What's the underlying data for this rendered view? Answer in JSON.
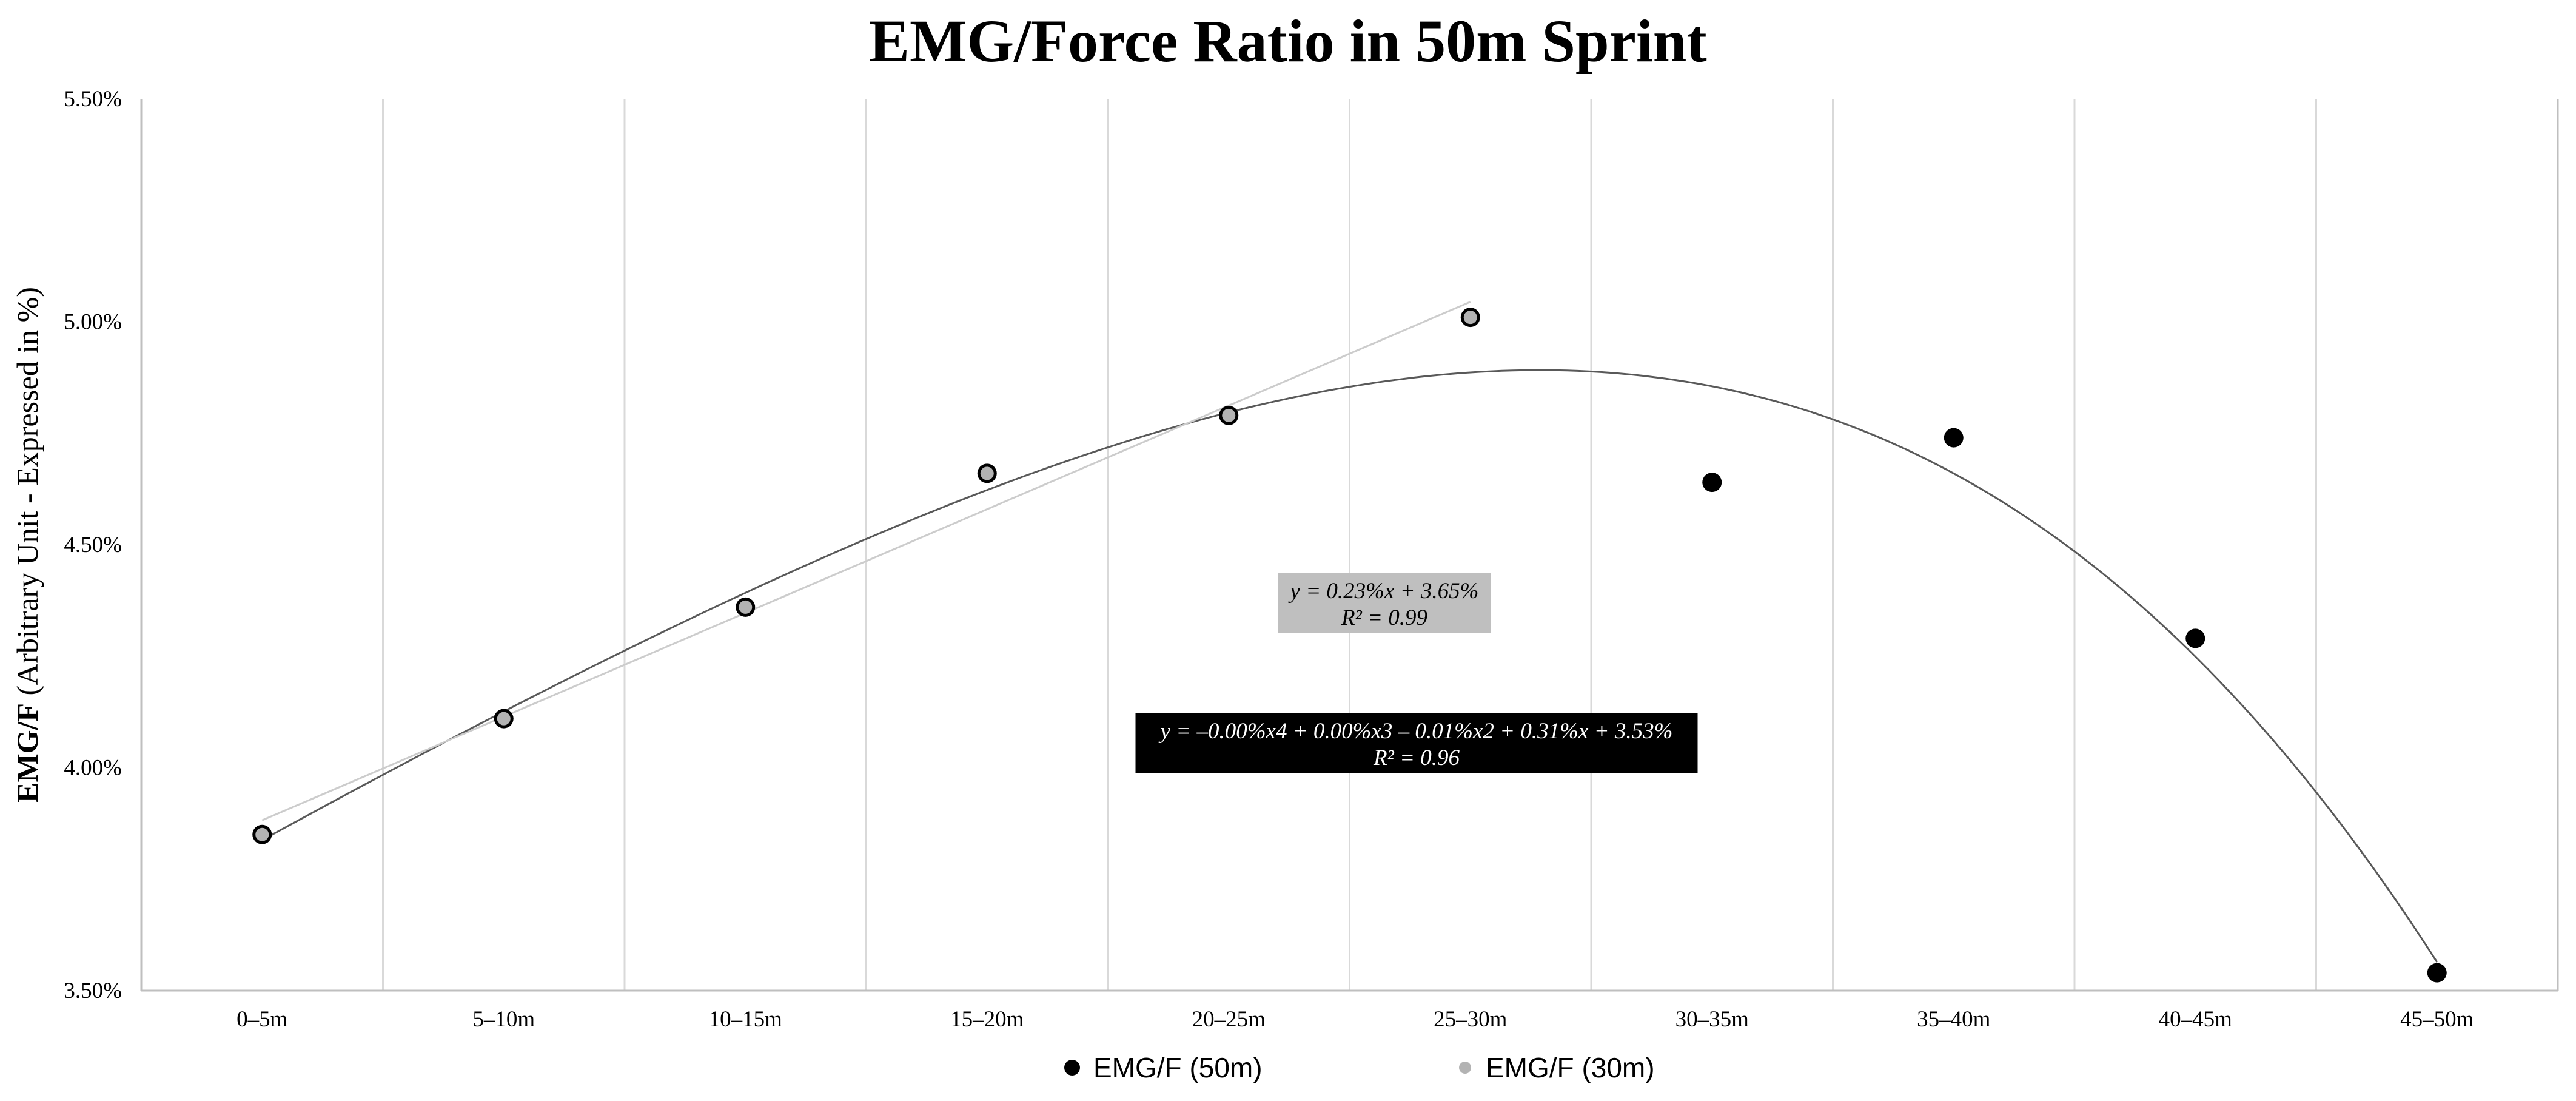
{
  "chart_data": {
    "type": "scatter",
    "title": "EMG/Force Ratio in 50m Sprint",
    "ylabel_bold": "EMG/F",
    "ylabel_rest": " (Arbitrary Unit - Expressed in %)",
    "xlabel": "",
    "categories": [
      "0–5m",
      "5–10m",
      "10–15m",
      "15–20m",
      "20–25m",
      "25–30m",
      "30–35m",
      "35–40m",
      "40–45m",
      "45–50m"
    ],
    "ylim": [
      3.5,
      5.5
    ],
    "y_ticks": [
      3.5,
      4.0,
      4.5,
      5.0,
      5.5
    ],
    "y_tick_labels": [
      "3.50%",
      "4.00%",
      "4.50%",
      "5.00%",
      "5.50%"
    ],
    "grid": "vertical",
    "legend_position": "bottom",
    "series": [
      {
        "name": "EMG/F (50m)",
        "color": "#000000",
        "values": [
          3.85,
          4.11,
          4.36,
          4.66,
          4.79,
          5.01,
          4.64,
          4.74,
          4.29,
          3.54
        ]
      },
      {
        "name": "EMG/F (30m)",
        "color": "#b3b3b3",
        "values": [
          3.85,
          4.11,
          4.36,
          4.66,
          4.79,
          5.01
        ]
      }
    ],
    "trendlines": [
      {
        "series": "EMG/F (30m)",
        "kind": "linear",
        "color": "#cccccc",
        "equation": "y = 0.23%x + 3.65%",
        "r2": "R² = 0.99",
        "label_bg": "#bfbfbf",
        "label_fg": "#000000"
      },
      {
        "series": "EMG/F (50m)",
        "kind": "polynomial-4",
        "color": "#595959",
        "equation": "y = –0.00%x4 + 0.00%x3 – 0.01%x2 + 0.31%x + 3.53%",
        "r2": "R² = 0.96",
        "label_bg": "#000000",
        "label_fg": "#ffffff"
      }
    ]
  }
}
